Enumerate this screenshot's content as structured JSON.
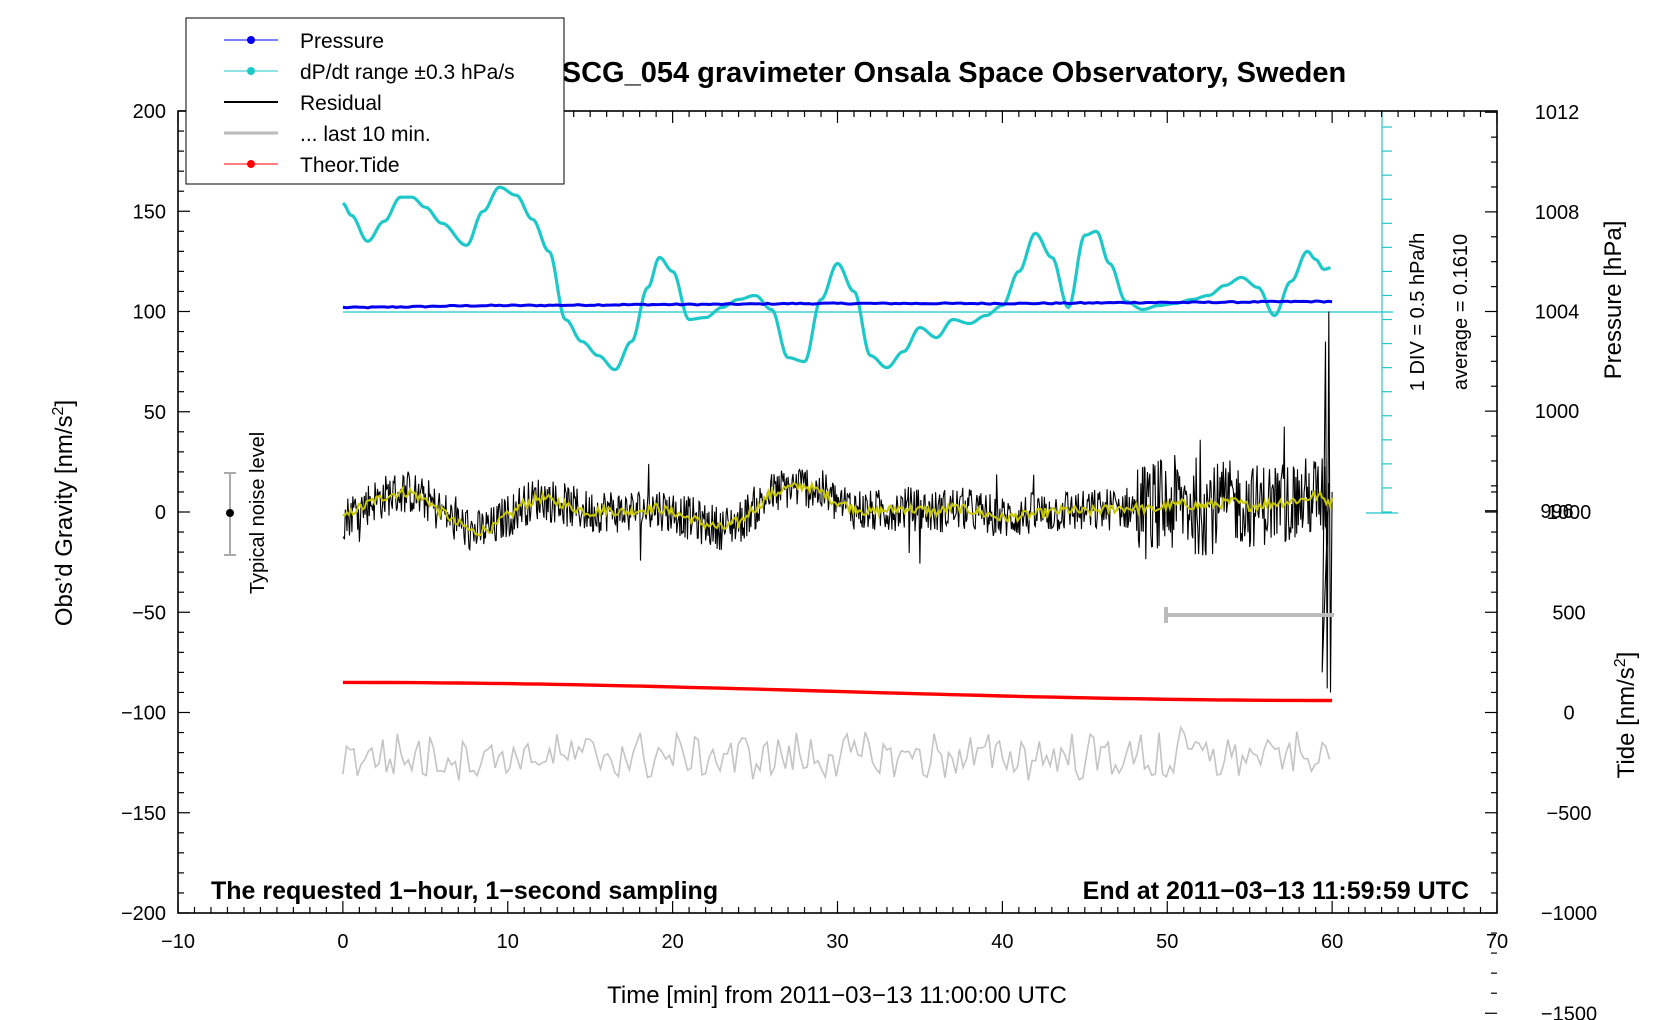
{
  "chart_data": {
    "type": "line",
    "title": "SCG_054 gravimeter Onsala Space Observatory, Sweden",
    "xlabel": "Time [min] from 2011−03−13 11:00:00 UTC",
    "ylabel_left": "Obs’d Gravity [nm/s",
    "ylabel_left_sup": "2",
    "ylabel_left_end": "]",
    "ylabel_pressure": "Pressure [hPa]",
    "ylabel_tide": "Tide [nm/s",
    "ylabel_tide_sup": "2",
    "ylabel_tide_end": "]",
    "xlim": [
      -10,
      70
    ],
    "ylim_gravity": [
      -200,
      200
    ],
    "x_ticks": [
      -10,
      0,
      10,
      20,
      30,
      40,
      50,
      60,
      70
    ],
    "x_tick_labels": [
      "−10",
      "0",
      "10",
      "20",
      "30",
      "40",
      "50",
      "60",
      "70"
    ],
    "y_ticks": [
      -200,
      -150,
      -100,
      -50,
      0,
      50,
      100,
      150,
      200
    ],
    "y_tick_labels": [
      "−200",
      "−150",
      "−100",
      "−50",
      "0",
      "50",
      "100",
      "150",
      "200"
    ],
    "pressure_ticks": [
      996,
      1000,
      1004,
      1008,
      1012
    ],
    "pressure_tick_labels": [
      "996",
      "1000",
      "1004",
      "1008",
      "1012"
    ],
    "tide_ticks": [
      -1500,
      -1000,
      -500,
      0,
      500,
      1000
    ],
    "tide_tick_labels": [
      "−1500",
      "−1000",
      "−500",
      "0",
      "500",
      "1000"
    ],
    "pressure_axis_data_anchor": {
      "hpa_1004_at_gravity": 100,
      "hpa_per_gravity_unit": 0.0805
    },
    "tide_axis_data_anchor": {
      "tide_0_at_gravity": -100,
      "tide_per_gravity_unit": 10
    },
    "annotations": {
      "left_bottom": "The requested 1−hour, 1−second sampling",
      "right_bottom": "End at 2011−03−13 11:59:59 UTC",
      "noise": "Typical noise level",
      "div_label": "1 DIV = 0.5 hPa/h",
      "average_label": "average = 0.1610"
    },
    "legend": [
      {
        "label": "Pressure",
        "color": "#0000ee"
      },
      {
        "label": "dP/dt range ±0.3 hPa/s",
        "color": "#1ec8c8"
      },
      {
        "label": "Residual",
        "color": "#000000"
      },
      {
        "label": "... last 10 min.",
        "color": "#bbbbbb"
      },
      {
        "label": "Theor.Tide",
        "color": "#ff0000"
      }
    ],
    "series": [
      {
        "name": "Pressure",
        "color": "#0000ee",
        "x": [
          0,
          10,
          20,
          30,
          40,
          50,
          60
        ],
        "y": [
          102,
          103,
          103.5,
          104,
          104,
          104.5,
          105
        ]
      },
      {
        "name": "dP/dt",
        "color": "#1ec8c8",
        "x": [
          0,
          0.5,
          1.5,
          2.5,
          3.5,
          4.2,
          5,
          6,
          7.5,
          8.5,
          9.5,
          10.5,
          11.5,
          12.5,
          13.5,
          14.5,
          15.5,
          16.5,
          17.5,
          18.5,
          19.2,
          20,
          21,
          22,
          23,
          24,
          25,
          26,
          27,
          28,
          29,
          30,
          31,
          32,
          33,
          34,
          35,
          36,
          37,
          38,
          39,
          40,
          41,
          42,
          43,
          44,
          45,
          45.7,
          46.5,
          47.5,
          48.5,
          49.5,
          50.5,
          51.5,
          52.5,
          53.5,
          54.5,
          55.5,
          56.5,
          57.5,
          58.5,
          59,
          59.5,
          60
        ],
        "y": [
          154,
          148,
          135,
          145,
          157,
          157,
          152,
          144,
          133,
          150,
          162,
          158,
          146,
          130,
          96,
          85,
          78,
          71,
          85,
          112,
          127,
          120,
          96,
          97,
          102,
          106,
          108,
          101,
          77,
          75,
          106,
          124,
          110,
          78,
          72,
          80,
          92,
          87,
          96,
          94,
          98,
          103,
          120,
          139,
          127,
          102,
          138,
          140,
          124,
          105,
          101,
          103,
          104,
          106,
          108,
          113,
          117,
          112,
          98,
          115,
          130,
          126,
          121,
          122
        ]
      },
      {
        "name": "Residual (smoothed)",
        "color": "#c8c800",
        "x": [
          0,
          1,
          2,
          3,
          4,
          5,
          6,
          7,
          8,
          9,
          10,
          11,
          12,
          13,
          14,
          15,
          16,
          17,
          18,
          19,
          20,
          21,
          22,
          23,
          24,
          25,
          26,
          27,
          28,
          29,
          30,
          31,
          32,
          33,
          34,
          35,
          36,
          37,
          38,
          39,
          40,
          41,
          42,
          43,
          44,
          45,
          46,
          47,
          48,
          49,
          50,
          51,
          52,
          53,
          54,
          55,
          56,
          57,
          58,
          59,
          60
        ],
        "y": [
          -3,
          2,
          6,
          9,
          10,
          6,
          0,
          -6,
          -10,
          -8,
          -2,
          4,
          7,
          5,
          2,
          0,
          1,
          0,
          1,
          2,
          0,
          -3,
          -6,
          -8,
          -5,
          2,
          9,
          12,
          13,
          10,
          5,
          2,
          0,
          1,
          2,
          1,
          0,
          2,
          1,
          -1,
          -3,
          -2,
          -1,
          0,
          1,
          0,
          1,
          2,
          2,
          1,
          3,
          4,
          3,
          4,
          5,
          3,
          4,
          5,
          6,
          8,
          5
        ]
      },
      {
        "name": "Theor.Tide",
        "color": "#ff0000",
        "x": [
          0,
          60
        ],
        "y": [
          -85,
          -94
        ]
      }
    ]
  }
}
